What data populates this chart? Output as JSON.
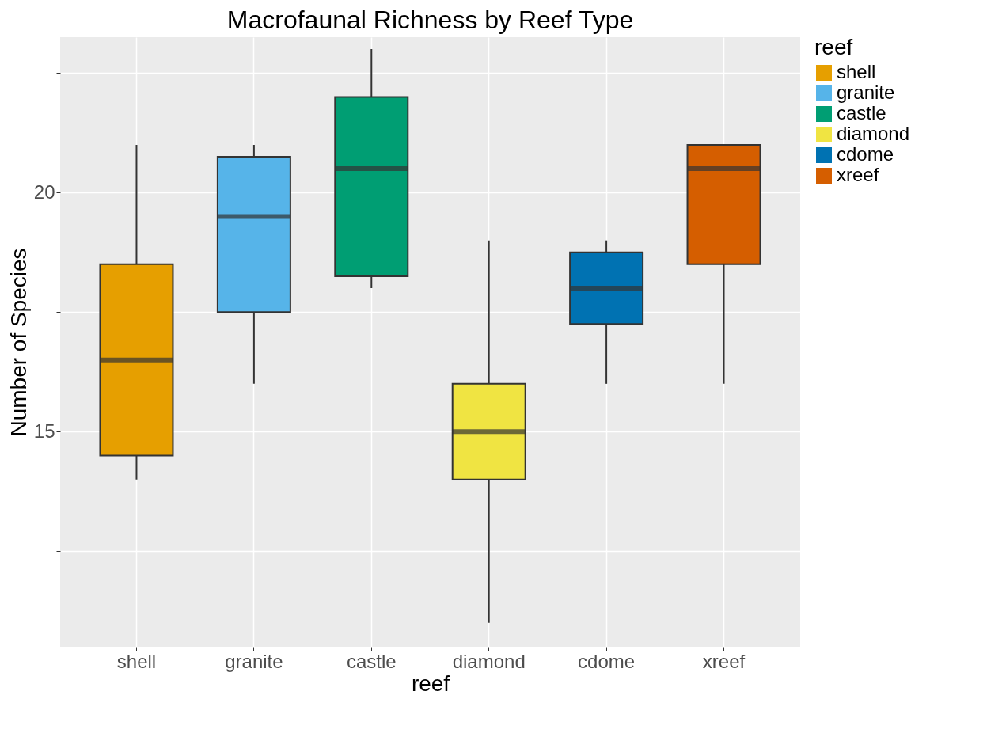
{
  "chart_data": {
    "type": "box",
    "title": "Macrofaunal Richness by Reef Type",
    "xlabel": "reef",
    "ylabel": "Number of Species",
    "legend_title": "reef",
    "categories": [
      "shell",
      "granite",
      "castle",
      "diamond",
      "cdome",
      "xreef"
    ],
    "series": [
      {
        "name": "shell",
        "color": "#e69f00",
        "boxes": [
          {
            "low": 14,
            "q1": 14.5,
            "median": 16.5,
            "q3": 18.5,
            "high": 21
          },
          null,
          null,
          null,
          null,
          null
        ]
      },
      {
        "name": "granite",
        "color": "#56b4e9",
        "boxes": [
          null,
          {
            "low": 16,
            "q1": 17.5,
            "median": 19.5,
            "q3": 20.75,
            "high": 21
          },
          null,
          null,
          null,
          null
        ]
      },
      {
        "name": "castle",
        "color": "#009e73",
        "boxes": [
          null,
          null,
          {
            "low": 18,
            "q1": 18.25,
            "median": 20.5,
            "q3": 22,
            "high": 23
          },
          null,
          null,
          null
        ]
      },
      {
        "name": "diamond",
        "color": "#f0e442",
        "boxes": [
          null,
          null,
          null,
          {
            "low": 11,
            "q1": 14,
            "median": 15,
            "q3": 16,
            "high": 19
          },
          null,
          null
        ]
      },
      {
        "name": "cdome",
        "color": "#0072b2",
        "boxes": [
          null,
          null,
          null,
          null,
          {
            "low": 16,
            "q1": 17.25,
            "median": 18,
            "q3": 18.75,
            "high": 19
          },
          null
        ]
      },
      {
        "name": "xreef",
        "color": "#d55e00",
        "boxes": [
          null,
          null,
          null,
          null,
          null,
          {
            "low": 16,
            "q1": 18.5,
            "median": 20.5,
            "q3": 21,
            "high": 21
          }
        ]
      }
    ],
    "ylim": [
      10.5,
      23.25
    ],
    "yticks": [
      {
        "value": 12.5,
        "label": null
      },
      15,
      {
        "value": 17.5,
        "label": null
      },
      20,
      {
        "value": 22.5,
        "label": null
      }
    ],
    "grid": true,
    "legend": "right"
  }
}
